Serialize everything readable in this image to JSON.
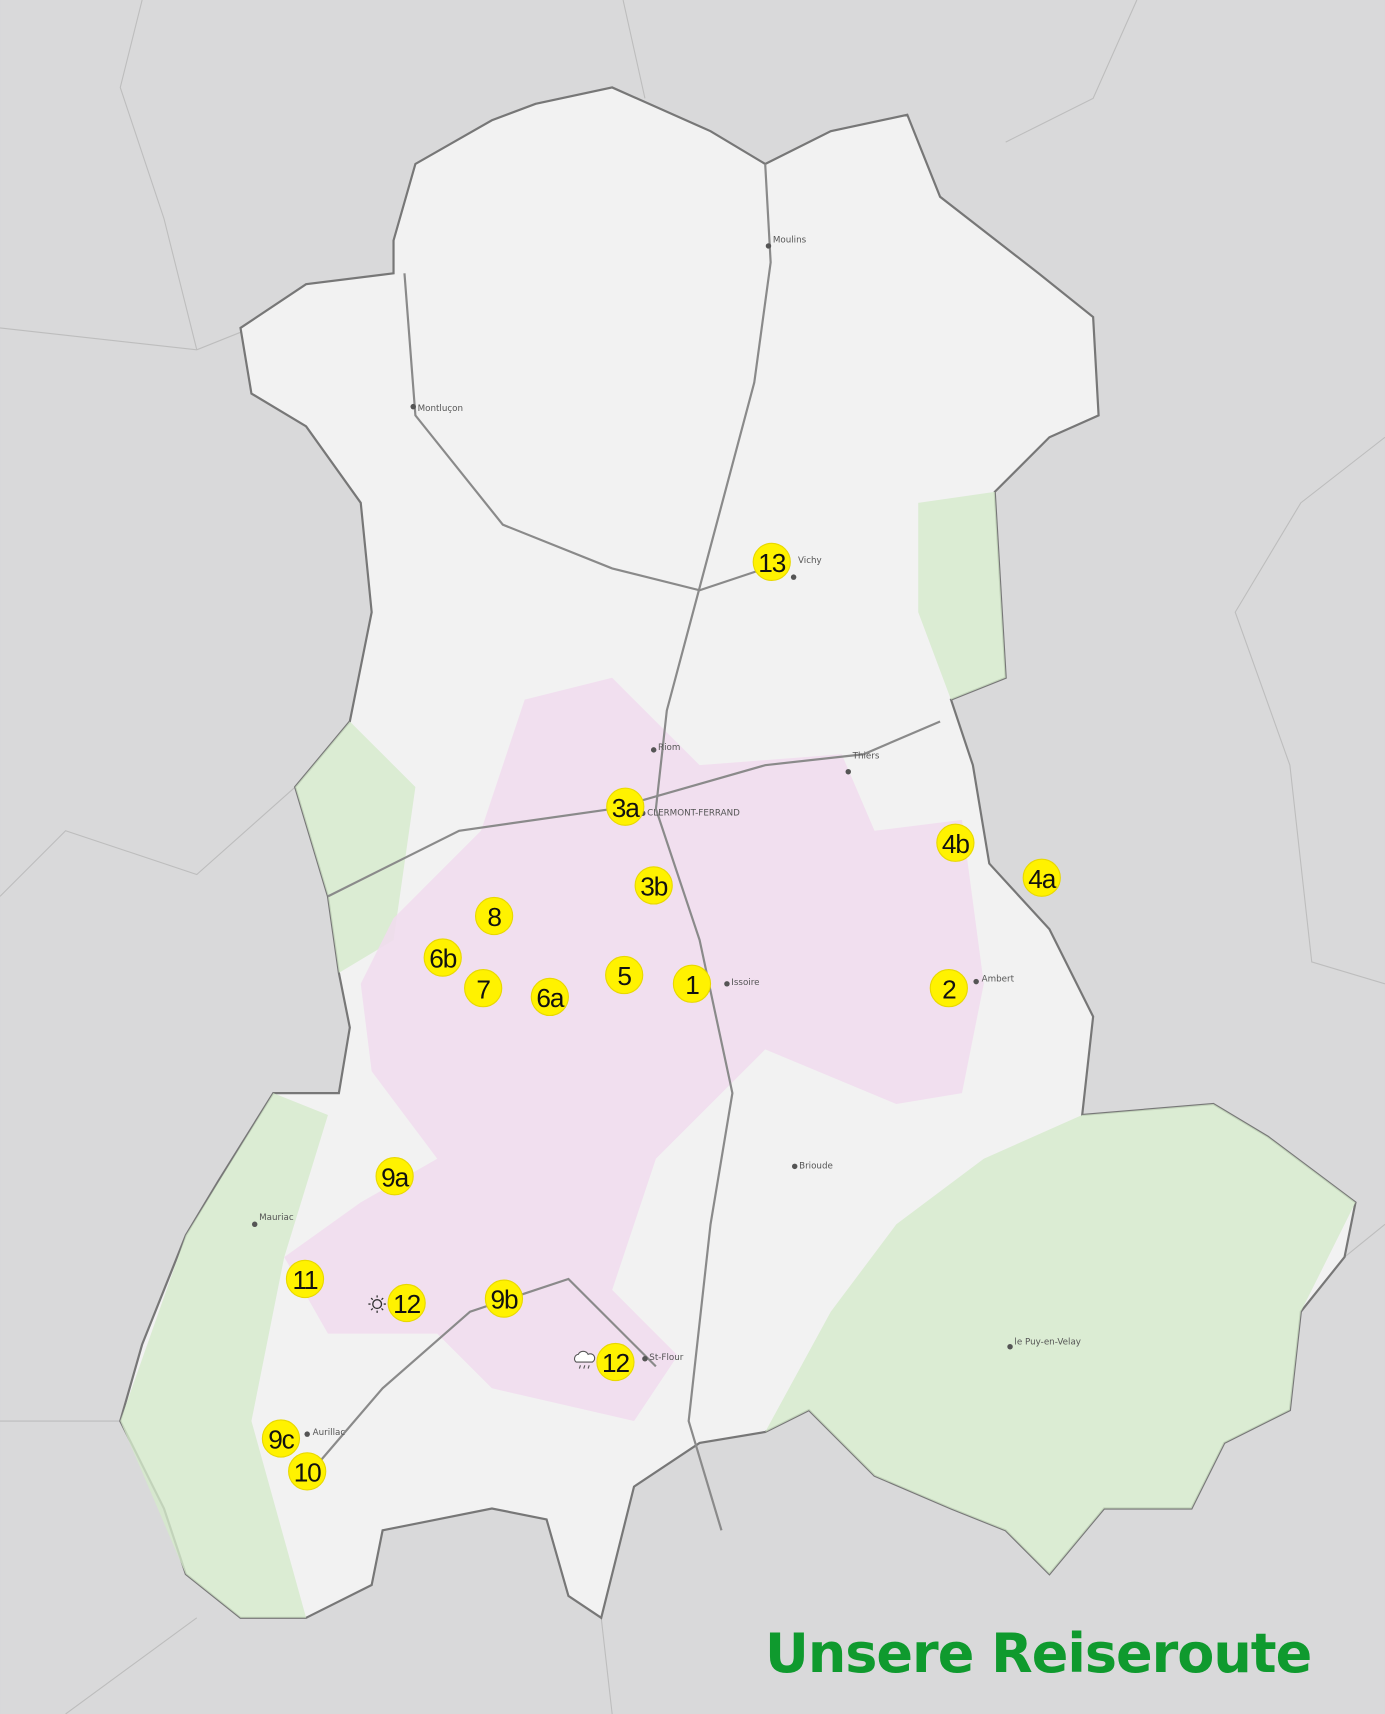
{
  "title": "Unsere Reiseroute",
  "colors": {
    "title": "#0f9a2e",
    "marker": "#fff200",
    "background": "#d9d9da",
    "region": "#f2f2f2",
    "volcano_park": "#f1dcef",
    "forest": "#cfe6c3"
  },
  "cities": [
    {
      "name": "Moulins"
    },
    {
      "name": "Montluçon"
    },
    {
      "name": "Vichy"
    },
    {
      "name": "CLERMONT-FERRAND"
    },
    {
      "name": "Thiers"
    },
    {
      "name": "Issoire"
    },
    {
      "name": "Ambert"
    },
    {
      "name": "Brioude"
    },
    {
      "name": "Mauriac"
    },
    {
      "name": "Aurillac"
    },
    {
      "name": "St-Flour"
    },
    {
      "name": "le Puy-en-Velay"
    },
    {
      "name": "Riom"
    }
  ],
  "markers": [
    {
      "label": "13"
    },
    {
      "label": "3a"
    },
    {
      "label": "3b"
    },
    {
      "label": "4b"
    },
    {
      "label": "4a"
    },
    {
      "label": "8"
    },
    {
      "label": "6b"
    },
    {
      "label": "7"
    },
    {
      "label": "6a"
    },
    {
      "label": "5"
    },
    {
      "label": "1"
    },
    {
      "label": "2"
    },
    {
      "label": "9a"
    },
    {
      "label": "11"
    },
    {
      "label": "12"
    },
    {
      "label": "9b"
    },
    {
      "label": "12"
    },
    {
      "label": "9c"
    },
    {
      "label": "10"
    }
  ],
  "weather_icons": [
    {
      "icon": "sun-icon"
    },
    {
      "icon": "rain-cloud-icon"
    }
  ]
}
